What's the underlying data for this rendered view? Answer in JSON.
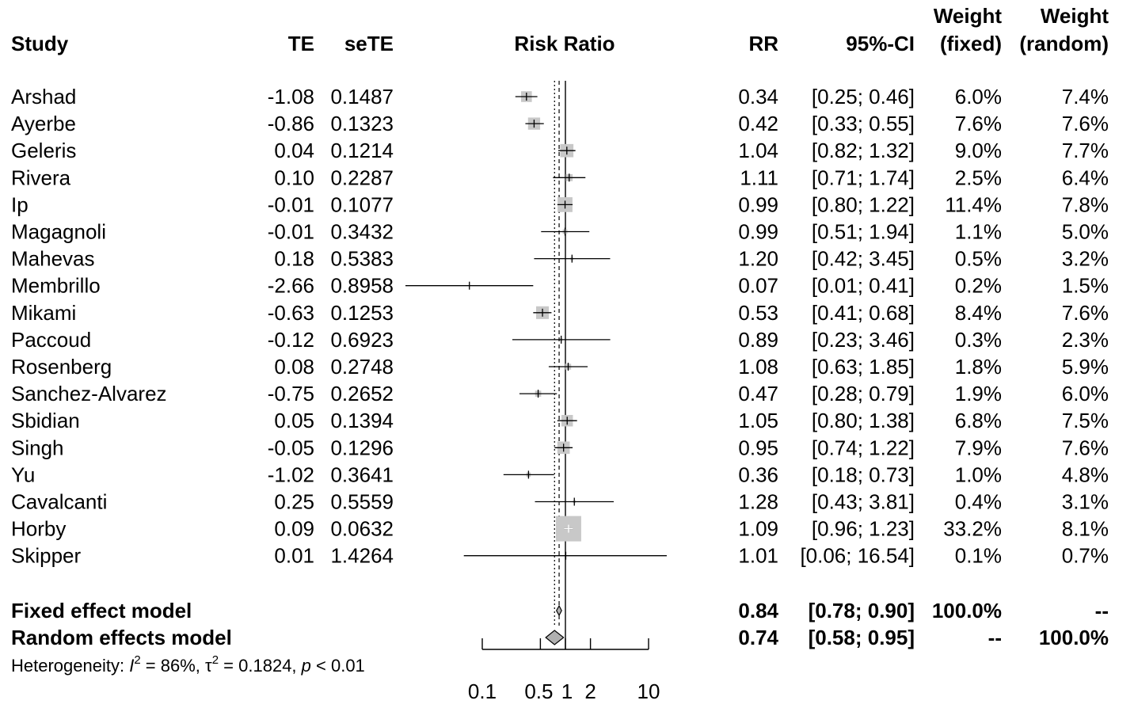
{
  "chart_data": {
    "type": "forest",
    "xlabel": "Risk Ratio",
    "xscale": "log",
    "xlim": [
      0.1,
      10
    ],
    "xticks": [
      0.1,
      0.5,
      1,
      2,
      10
    ],
    "xtick_labels": [
      "0.1",
      "0.5",
      "1",
      "2",
      "10"
    ],
    "reference_line": 1,
    "columns": {
      "study": "Study",
      "te": "TE",
      "sete": "seTE",
      "rr": "RR",
      "ci": "95%-CI",
      "w_fixed_top": "Weight",
      "w_fixed_bottom": "(fixed)",
      "w_random_top": "Weight",
      "w_random_bottom": "(random)"
    },
    "studies": [
      {
        "study": "Arshad",
        "te": "-1.08",
        "sete": "0.1487",
        "rr": 0.34,
        "lower": 0.25,
        "upper": 0.46,
        "rr_label": "0.34",
        "ci_label": "[0.25;  0.46]",
        "w_fixed": "6.0%",
        "w_random": "7.4%",
        "w_fixed_value": 6.0
      },
      {
        "study": "Ayerbe",
        "te": "-0.86",
        "sete": "0.1323",
        "rr": 0.42,
        "lower": 0.33,
        "upper": 0.55,
        "rr_label": "0.42",
        "ci_label": "[0.33;  0.55]",
        "w_fixed": "7.6%",
        "w_random": "7.6%",
        "w_fixed_value": 7.6
      },
      {
        "study": "Geleris",
        "te": "0.04",
        "sete": "0.1214",
        "rr": 1.04,
        "lower": 0.82,
        "upper": 1.32,
        "rr_label": "1.04",
        "ci_label": "[0.82;  1.32]",
        "w_fixed": "9.0%",
        "w_random": "7.7%",
        "w_fixed_value": 9.0
      },
      {
        "study": "Rivera",
        "te": "0.10",
        "sete": "0.2287",
        "rr": 1.11,
        "lower": 0.71,
        "upper": 1.74,
        "rr_label": "1.11",
        "ci_label": "[0.71;  1.74]",
        "w_fixed": "2.5%",
        "w_random": "6.4%",
        "w_fixed_value": 2.5
      },
      {
        "study": "Ip",
        "te": "-0.01",
        "sete": "0.1077",
        "rr": 0.99,
        "lower": 0.8,
        "upper": 1.22,
        "rr_label": "0.99",
        "ci_label": "[0.80;  1.22]",
        "w_fixed": "11.4%",
        "w_random": "7.8%",
        "w_fixed_value": 11.4
      },
      {
        "study": "Magagnoli",
        "te": "-0.01",
        "sete": "0.3432",
        "rr": 0.99,
        "lower": 0.51,
        "upper": 1.94,
        "rr_label": "0.99",
        "ci_label": "[0.51;  1.94]",
        "w_fixed": "1.1%",
        "w_random": "5.0%",
        "w_fixed_value": 1.1
      },
      {
        "study": "Mahevas",
        "te": "0.18",
        "sete": "0.5383",
        "rr": 1.2,
        "lower": 0.42,
        "upper": 3.45,
        "rr_label": "1.20",
        "ci_label": "[0.42;  3.45]",
        "w_fixed": "0.5%",
        "w_random": "3.2%",
        "w_fixed_value": 0.5
      },
      {
        "study": "Membrillo",
        "te": "-2.66",
        "sete": "0.8958",
        "rr": 0.07,
        "lower": 0.01,
        "upper": 0.41,
        "rr_label": "0.07",
        "ci_label": "[0.01;  0.41]",
        "w_fixed": "0.2%",
        "w_random": "1.5%",
        "w_fixed_value": 0.2
      },
      {
        "study": "Mikami",
        "te": "-0.63",
        "sete": "0.1253",
        "rr": 0.53,
        "lower": 0.41,
        "upper": 0.68,
        "rr_label": "0.53",
        "ci_label": "[0.41;  0.68]",
        "w_fixed": "8.4%",
        "w_random": "7.6%",
        "w_fixed_value": 8.4
      },
      {
        "study": "Paccoud",
        "te": "-0.12",
        "sete": "0.6923",
        "rr": 0.89,
        "lower": 0.23,
        "upper": 3.46,
        "rr_label": "0.89",
        "ci_label": "[0.23;  3.46]",
        "w_fixed": "0.3%",
        "w_random": "2.3%",
        "w_fixed_value": 0.3
      },
      {
        "study": "Rosenberg",
        "te": "0.08",
        "sete": "0.2748",
        "rr": 1.08,
        "lower": 0.63,
        "upper": 1.85,
        "rr_label": "1.08",
        "ci_label": "[0.63;  1.85]",
        "w_fixed": "1.8%",
        "w_random": "5.9%",
        "w_fixed_value": 1.8
      },
      {
        "study": "Sanchez-Alvarez",
        "te": "-0.75",
        "sete": "0.2652",
        "rr": 0.47,
        "lower": 0.28,
        "upper": 0.79,
        "rr_label": "0.47",
        "ci_label": "[0.28;  0.79]",
        "w_fixed": "1.9%",
        "w_random": "6.0%",
        "w_fixed_value": 1.9
      },
      {
        "study": "Sbidian",
        "te": "0.05",
        "sete": "0.1394",
        "rr": 1.05,
        "lower": 0.8,
        "upper": 1.38,
        "rr_label": "1.05",
        "ci_label": "[0.80;  1.38]",
        "w_fixed": "6.8%",
        "w_random": "7.5%",
        "w_fixed_value": 6.8
      },
      {
        "study": "Singh",
        "te": "-0.05",
        "sete": "0.1296",
        "rr": 0.95,
        "lower": 0.74,
        "upper": 1.22,
        "rr_label": "0.95",
        "ci_label": "[0.74;  1.22]",
        "w_fixed": "7.9%",
        "w_random": "7.6%",
        "w_fixed_value": 7.9
      },
      {
        "study": "Yu",
        "te": "-1.02",
        "sete": "0.3641",
        "rr": 0.36,
        "lower": 0.18,
        "upper": 0.73,
        "rr_label": "0.36",
        "ci_label": "[0.18;  0.73]",
        "w_fixed": "1.0%",
        "w_random": "4.8%",
        "w_fixed_value": 1.0
      },
      {
        "study": "Cavalcanti",
        "te": "0.25",
        "sete": "0.5559",
        "rr": 1.28,
        "lower": 0.43,
        "upper": 3.81,
        "rr_label": "1.28",
        "ci_label": "[0.43;  3.81]",
        "w_fixed": "0.4%",
        "w_random": "3.1%",
        "w_fixed_value": 0.4
      },
      {
        "study": "Horby",
        "te": "0.09",
        "sete": "0.0632",
        "rr": 1.09,
        "lower": 0.96,
        "upper": 1.23,
        "rr_label": "1.09",
        "ci_label": "[0.96;  1.23]",
        "w_fixed": "33.2%",
        "w_random": "8.1%",
        "w_fixed_value": 33.2
      },
      {
        "study": "Skipper",
        "te": "0.01",
        "sete": "1.4264",
        "rr": 1.01,
        "lower": 0.06,
        "upper": 16.54,
        "rr_label": "1.01",
        "ci_label": "[0.06; 16.54]",
        "w_fixed": "0.1%",
        "w_random": "0.7%",
        "w_fixed_value": 0.1
      }
    ],
    "pooled": [
      {
        "name": "Fixed effect model",
        "rr": 0.84,
        "lower": 0.78,
        "upper": 0.9,
        "rr_label": "0.84",
        "ci_label": "[0.78;  0.90]",
        "w_fixed": "100.0%",
        "w_random": "--"
      },
      {
        "name": "Random effects model",
        "rr": 0.74,
        "lower": 0.58,
        "upper": 0.95,
        "rr_label": "0.74",
        "ci_label": "[0.58;  0.95]",
        "w_fixed": "--",
        "w_random": "100.0%"
      }
    ],
    "heterogeneity": {
      "prefix": "Heterogeneity: ",
      "i2_symbol": "I",
      "i2_value": " = 86%, ",
      "tau_symbol": "τ",
      "tau_value": " = 0.1824, ",
      "p_symbol": "p",
      "p_value": " < 0.01"
    },
    "colors": {
      "text": "#000000",
      "square_fill": "#c8c8c8",
      "diamond_fill": "#b0b0b0",
      "axis": "#000000"
    }
  }
}
